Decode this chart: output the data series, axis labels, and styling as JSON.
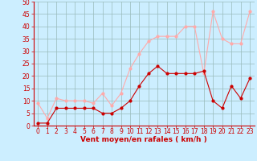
{
  "x": [
    0,
    1,
    2,
    3,
    4,
    5,
    6,
    7,
    8,
    9,
    10,
    11,
    12,
    13,
    14,
    15,
    16,
    17,
    18,
    19,
    20,
    21,
    22,
    23
  ],
  "wind_avg": [
    1,
    1,
    7,
    7,
    7,
    7,
    7,
    5,
    5,
    7,
    10,
    16,
    21,
    24,
    21,
    21,
    21,
    21,
    22,
    10,
    7,
    16,
    11,
    19
  ],
  "wind_gust": [
    9,
    3,
    11,
    10,
    10,
    10,
    9,
    13,
    8,
    13,
    23,
    29,
    34,
    36,
    36,
    36,
    40,
    40,
    21,
    46,
    35,
    33,
    33,
    46
  ],
  "avg_color": "#cc0000",
  "gust_color": "#ffaaaa",
  "bg_color": "#cceeff",
  "grid_color": "#99bbbb",
  "xlabel": "Vent moyen/en rafales ( km/h )",
  "ylim": [
    0,
    50
  ],
  "xlim": [
    -0.5,
    23.5
  ],
  "yticks": [
    0,
    5,
    10,
    15,
    20,
    25,
    30,
    35,
    40,
    45,
    50
  ],
  "xticks": [
    0,
    1,
    2,
    3,
    4,
    5,
    6,
    7,
    8,
    9,
    10,
    11,
    12,
    13,
    14,
    15,
    16,
    17,
    18,
    19,
    20,
    21,
    22,
    23
  ],
  "tick_fontsize": 5.5,
  "xlabel_fontsize": 6.5
}
